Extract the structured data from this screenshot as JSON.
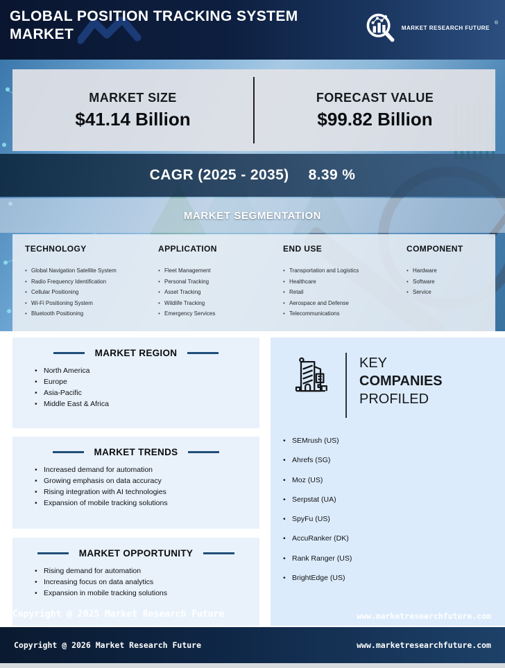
{
  "header": {
    "title_line1": "GLOBAL POSITION TRACKING SYSTEM",
    "title_line2": "MARKET",
    "logo_text": "MARKET RESEARCH FUTURE",
    "registered_mark": "®"
  },
  "stats": {
    "market_size_label": "MARKET SIZE",
    "market_size_value": "$41.14 Billion",
    "forecast_label": "FORECAST VALUE",
    "forecast_value": "$99.82 Billion"
  },
  "cagr": {
    "label": "CAGR (2025 - 2035)",
    "value": "8.39 %"
  },
  "segmentation": {
    "title": "MARKET SEGMENTATION",
    "columns": [
      {
        "title": "TECHNOLOGY",
        "items": [
          "Global Navigation Satellite System",
          "Radio Frequency Identification",
          "Cellular Positioning",
          "Wi-Fi Positioning System",
          "Bluetooth Positioning"
        ]
      },
      {
        "title": "APPLICATION",
        "items": [
          "Fleet Management",
          "Personal Tracking",
          "Asset Tracking",
          "Wildlife Tracking",
          "Emergency Services"
        ]
      },
      {
        "title": "END USE",
        "items": [
          "Transportation and Logistics",
          "Healthcare",
          "Retail",
          "Aerospace and Defense",
          "Telecommunications"
        ]
      },
      {
        "title": "COMPONENT",
        "items": [
          "Hardware",
          "Software",
          "Service"
        ]
      }
    ]
  },
  "region": {
    "title": "MARKET REGION",
    "items": [
      "North America",
      "Europe",
      "Asia-Pacific",
      "Middle East & Africa"
    ]
  },
  "trends": {
    "title": "MARKET TRENDS",
    "items": [
      "Increased demand for automation",
      "Growing emphasis on data accuracy",
      "Rising integration with AI technologies",
      "Expansion of mobile tracking solutions"
    ]
  },
  "opportunity": {
    "title": "MARKET OPPORTUNITY",
    "items": [
      "Rising demand for automation",
      "Increasing focus on data analytics",
      "Expansion in mobile tracking solutions"
    ]
  },
  "companies": {
    "title_line1": "KEY",
    "title_line2": "COMPANIES",
    "title_line3": "PROFILED",
    "items": [
      "SEMrush (US)",
      "Ahrefs (SG)",
      "Moz (US)",
      "Serpstat (UA)",
      "SpyFu (US)",
      "AccuRanker (DK)",
      "Rank Ranger (US)",
      "BrightEdge (US)"
    ]
  },
  "watermark": {
    "copyright": "Copyright @ 2025 Market Research Future",
    "website": "www.marketresearchfuture.com"
  },
  "footer": {
    "copyright": "Copyright @ 2026 Market Research Future",
    "website": "www.marketresearchfuture.com"
  },
  "colors": {
    "accent_navy": "#1f4e79",
    "header_bg": "#0d1f40",
    "footer_bg": "#0f2747",
    "stats_panel": "#e0e1e6",
    "info_box_blue": "#e9f2fb",
    "companies_blue": "#dcebfb"
  }
}
